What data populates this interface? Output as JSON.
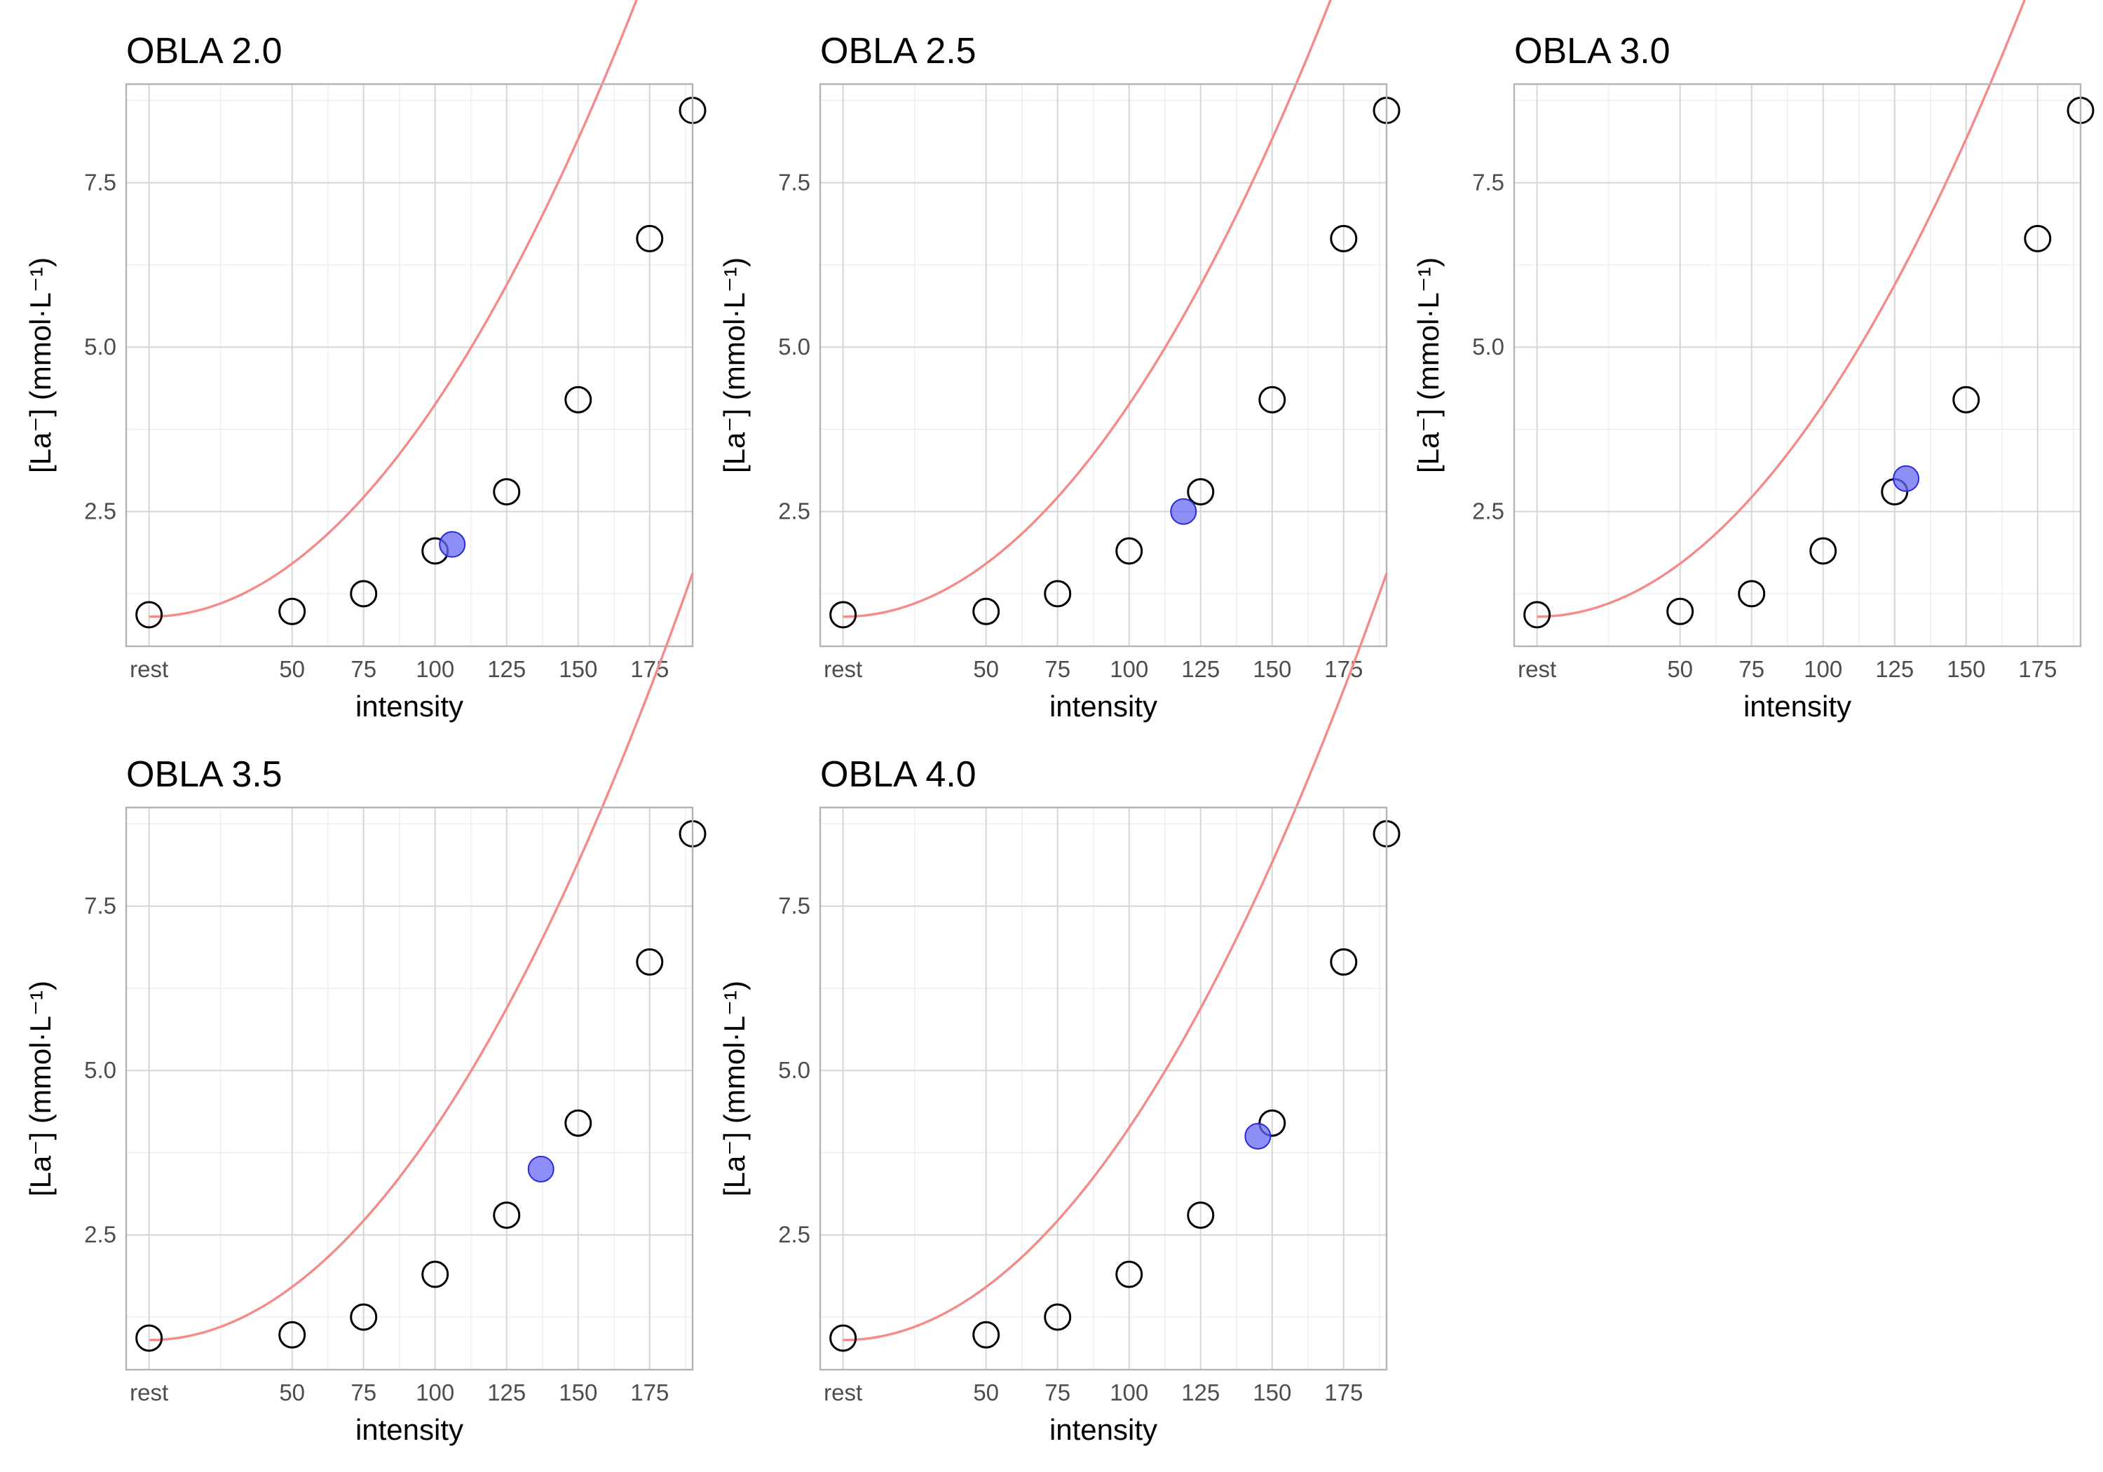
{
  "chart_data": [
    {
      "type": "scatter",
      "title": "OBLA 2.0",
      "xlabel": "intensity",
      "ylabel": "[La⁻] (mmol·L⁻¹)",
      "x_tick_labels": [
        "rest",
        "50",
        "75",
        "100",
        "125",
        "150",
        "175"
      ],
      "y_tick_labels": [
        "2.5",
        "5.0",
        "7.5"
      ],
      "x_ticks": [
        0,
        50,
        75,
        100,
        125,
        150,
        175
      ],
      "y_ticks": [
        2.5,
        5.0,
        7.5
      ],
      "xlim": [
        -8,
        190
      ],
      "ylim": [
        0.45,
        9.0
      ],
      "x": [
        0,
        50,
        75,
        100,
        125,
        150,
        175,
        190
      ],
      "y": [
        0.93,
        0.98,
        1.25,
        1.9,
        2.8,
        4.2,
        6.65,
        8.6
      ],
      "obla_point": {
        "x": 106,
        "y": 2.0
      },
      "fit_curve": {
        "x_range": [
          0,
          190
        ],
        "a": 0.9,
        "b": 0.000323,
        "c": 2
      }
    },
    {
      "type": "scatter",
      "title": "OBLA 2.5",
      "xlabel": "intensity",
      "ylabel": "[La⁻] (mmol·L⁻¹)",
      "x_tick_labels": [
        "rest",
        "50",
        "75",
        "100",
        "125",
        "150",
        "175"
      ],
      "y_tick_labels": [
        "2.5",
        "5.0",
        "7.5"
      ],
      "x_ticks": [
        0,
        50,
        75,
        100,
        125,
        150,
        175
      ],
      "y_ticks": [
        2.5,
        5.0,
        7.5
      ],
      "xlim": [
        -8,
        190
      ],
      "ylim": [
        0.45,
        9.0
      ],
      "x": [
        0,
        50,
        75,
        100,
        125,
        150,
        175,
        190
      ],
      "y": [
        0.93,
        0.98,
        1.25,
        1.9,
        2.8,
        4.2,
        6.65,
        8.6
      ],
      "obla_point": {
        "x": 119,
        "y": 2.5
      },
      "fit_curve": {
        "x_range": [
          0,
          190
        ],
        "a": 0.9,
        "b": 0.000323,
        "c": 2
      }
    },
    {
      "type": "scatter",
      "title": "OBLA 3.0",
      "xlabel": "intensity",
      "ylabel": "[La⁻] (mmol·L⁻¹)",
      "x_tick_labels": [
        "rest",
        "50",
        "75",
        "100",
        "125",
        "150",
        "175"
      ],
      "y_tick_labels": [
        "2.5",
        "5.0",
        "7.5"
      ],
      "x_ticks": [
        0,
        50,
        75,
        100,
        125,
        150,
        175
      ],
      "y_ticks": [
        2.5,
        5.0,
        7.5
      ],
      "xlim": [
        -8,
        190
      ],
      "ylim": [
        0.45,
        9.0
      ],
      "x": [
        0,
        50,
        75,
        100,
        125,
        150,
        175,
        190
      ],
      "y": [
        0.93,
        0.98,
        1.25,
        1.9,
        2.8,
        4.2,
        6.65,
        8.6
      ],
      "obla_point": {
        "x": 129,
        "y": 3.0
      },
      "fit_curve": {
        "x_range": [
          0,
          190
        ],
        "a": 0.9,
        "b": 0.000323,
        "c": 2
      }
    },
    {
      "type": "scatter",
      "title": "OBLA 3.5",
      "xlabel": "intensity",
      "ylabel": "[La⁻] (mmol·L⁻¹)",
      "x_tick_labels": [
        "rest",
        "50",
        "75",
        "100",
        "125",
        "150",
        "175"
      ],
      "y_tick_labels": [
        "2.5",
        "5.0",
        "7.5"
      ],
      "x_ticks": [
        0,
        50,
        75,
        100,
        125,
        150,
        175
      ],
      "y_ticks": [
        2.5,
        5.0,
        7.5
      ],
      "xlim": [
        -8,
        190
      ],
      "ylim": [
        0.45,
        9.0
      ],
      "x": [
        0,
        50,
        75,
        100,
        125,
        150,
        175,
        190
      ],
      "y": [
        0.93,
        0.98,
        1.25,
        1.9,
        2.8,
        4.2,
        6.65,
        8.6
      ],
      "obla_point": {
        "x": 137,
        "y": 3.5
      },
      "fit_curve": {
        "x_range": [
          0,
          190
        ],
        "a": 0.9,
        "b": 0.000323,
        "c": 2
      }
    },
    {
      "type": "scatter",
      "title": "OBLA 4.0",
      "xlabel": "intensity",
      "ylabel": "[La⁻] (mmol·L⁻¹)",
      "x_tick_labels": [
        "rest",
        "50",
        "75",
        "100",
        "125",
        "150",
        "175"
      ],
      "y_tick_labels": [
        "2.5",
        "5.0",
        "7.5"
      ],
      "x_ticks": [
        0,
        50,
        75,
        100,
        125,
        150,
        175
      ],
      "y_ticks": [
        2.5,
        5.0,
        7.5
      ],
      "xlim": [
        -8,
        190
      ],
      "ylim": [
        0.45,
        9.0
      ],
      "x": [
        0,
        50,
        75,
        100,
        125,
        150,
        175,
        190
      ],
      "y": [
        0.93,
        0.98,
        1.25,
        1.9,
        2.8,
        4.2,
        6.65,
        8.6
      ],
      "obla_point": {
        "x": 145,
        "y": 4.0
      },
      "fit_curve": {
        "x_range": [
          0,
          190
        ],
        "a": 0.9,
        "b": 0.000323,
        "c": 2
      }
    }
  ],
  "colors": {
    "curve": "#f48a8a",
    "obla_fill": "#6a6af5",
    "obla_stroke": "#2a2ae0",
    "point_stroke": "#000000"
  }
}
